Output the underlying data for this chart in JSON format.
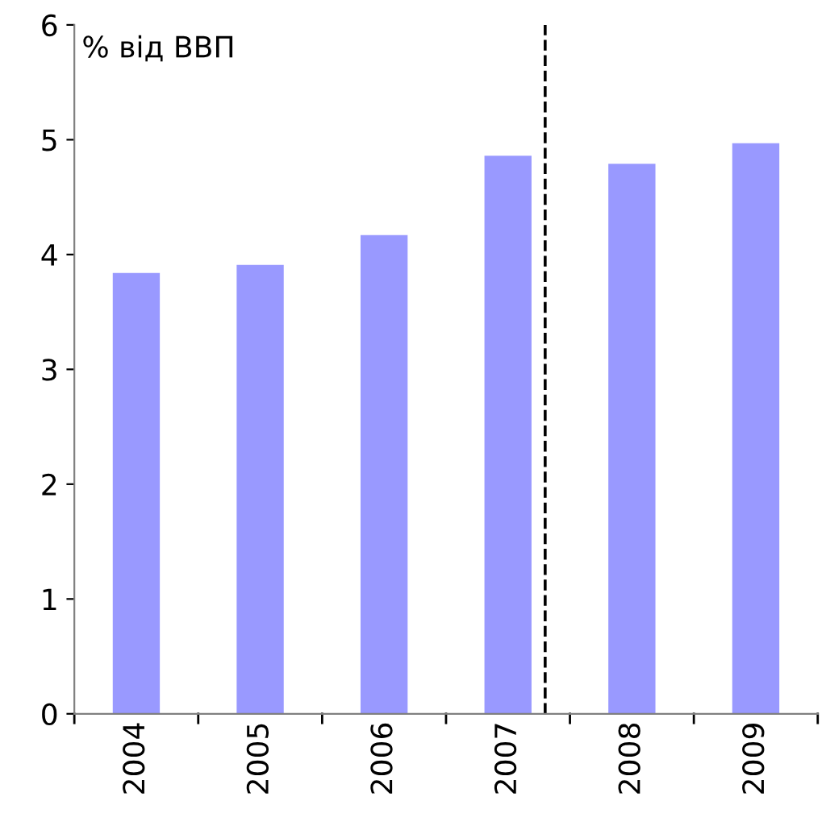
{
  "chart_data": {
    "type": "bar",
    "ylabel": "% від ВВП",
    "categories": [
      "2004",
      "2005",
      "2006",
      "2007",
      "2008",
      "2009"
    ],
    "values": [
      3.84,
      3.91,
      4.17,
      4.86,
      4.79,
      4.97
    ],
    "color": "#9999ff",
    "ylim": [
      0,
      6
    ],
    "yticks": [
      0,
      1,
      2,
      3,
      4,
      5,
      6
    ],
    "grid": false,
    "legend": false,
    "ref_lines": [
      {
        "axis": "x",
        "value": "2007",
        "color": "#000000",
        "line_style": "dashed"
      }
    ]
  }
}
